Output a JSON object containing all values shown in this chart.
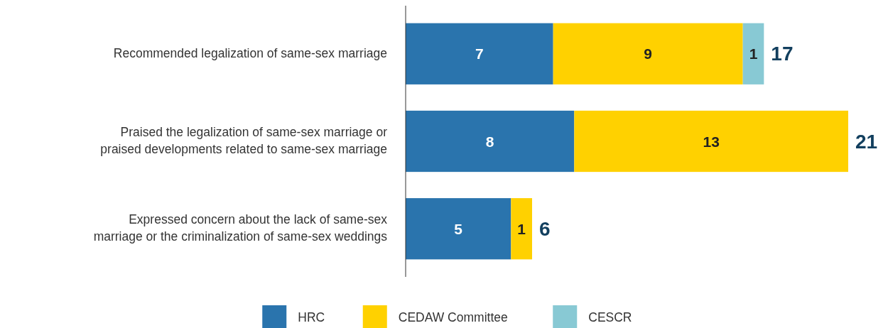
{
  "chart_data": {
    "type": "bar",
    "orientation": "horizontal",
    "stacked": true,
    "data_labels": true,
    "legend": "bottom",
    "categories": [
      "Recommended legalization of same-sex marriage",
      "Praised the legalization of same-sex marriage or praised developments related to same-sex marriage",
      "Expressed concern about the lack of same-sex marriage or the criminalization of same-sex weddings"
    ],
    "series": [
      {
        "name": "HRC",
        "color": "#2a74ad",
        "values": [
          7,
          8,
          5
        ]
      },
      {
        "name": "CEDAW Committee",
        "color": "#ffd100",
        "values": [
          9,
          13,
          1
        ]
      },
      {
        "name": "CESCR",
        "color": "#88c9d4",
        "values": [
          1,
          null,
          null
        ]
      }
    ],
    "totals": [
      "17",
      "21",
      "6"
    ]
  }
}
